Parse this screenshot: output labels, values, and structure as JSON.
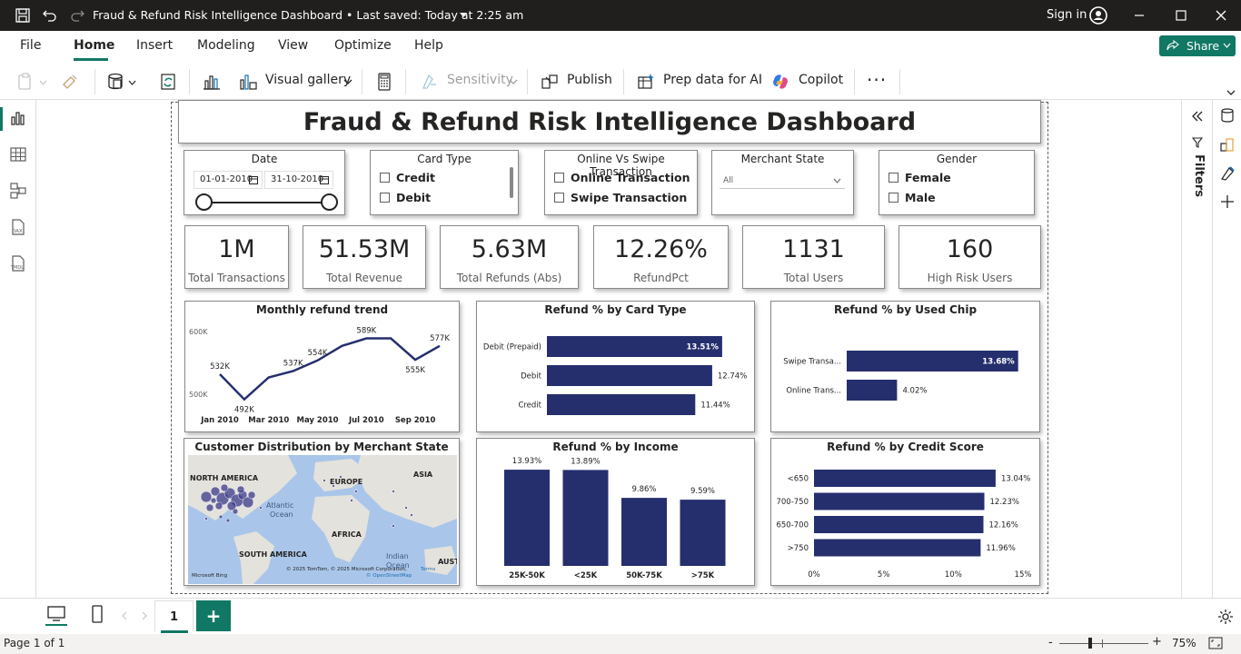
{
  "titlebar": {
    "title": "Fraud & Refund Risk Intelligence Dashboard",
    "saved": "• Last saved: Today at 2:25 am",
    "signin": "Sign in"
  },
  "menu": {
    "items": [
      "File",
      "Home",
      "Insert",
      "Modeling",
      "View",
      "Optimize",
      "Help"
    ],
    "share": "Share"
  },
  "ribbon": {
    "visual_gallery": "Visual gallery",
    "sensitivity": "Sensitivity",
    "publish": "Publish",
    "prep_data": "Prep data for AI",
    "copilot": "Copilot",
    "more": "···"
  },
  "dashboard": {
    "title": "Fraud & Refund Risk Intelligence Dashboard",
    "slicers": {
      "date": {
        "title": "Date",
        "from": "01-01-2010",
        "to": "31-10-2010"
      },
      "card_type": {
        "title": "Card Type",
        "options": [
          "Credit",
          "Debit"
        ]
      },
      "transaction": {
        "title": "Online Vs Swipe Transaction",
        "options": [
          "Online Transaction",
          "Swipe Transaction"
        ]
      },
      "merchant_state": {
        "title": "Merchant State",
        "value": "All"
      },
      "gender": {
        "title": "Gender",
        "options": [
          "Female",
          "Male"
        ]
      }
    },
    "kpis": [
      {
        "value": "1M",
        "label": "Total Transactions"
      },
      {
        "value": "51.53M",
        "label": "Total Revenue"
      },
      {
        "value": "5.63M",
        "label": "Total Refunds (Abs)"
      },
      {
        "value": "12.26%",
        "label": "RefundPct"
      },
      {
        "value": "1131",
        "label": "Total Users"
      },
      {
        "value": "160",
        "label": "High Risk Users"
      }
    ],
    "map": {
      "title": "Customer Distribution by Merchant State",
      "labels": [
        "NORTH AMERICA",
        "EUROPE",
        "ASIA",
        "Atlantic",
        "Ocean",
        "AFRICA",
        "SOUTH AMERICA",
        "Indian",
        "Ocean",
        "AUST"
      ],
      "attribution": "© 2025 TomTom, © 2025 Microsoft Corporation,",
      "terms": "Terms",
      "osm": "© OpenStreetMap",
      "bing": "Microsoft Bing"
    }
  },
  "chart_data": [
    {
      "type": "line",
      "title": "Monthly refund trend",
      "x": [
        "Jan 2010",
        "Feb 2010",
        "Mar 2010",
        "Apr 2010",
        "May 2010",
        "Jun 2010",
        "Jul 2010",
        "Aug 2010",
        "Sep 2010",
        "Oct 2010"
      ],
      "xticks": [
        "Jan 2010",
        "Mar 2010",
        "May 2010",
        "Jul 2010",
        "Sep 2010"
      ],
      "values": [
        532000,
        492000,
        527000,
        537000,
        554000,
        577000,
        589000,
        589000,
        555000,
        577000
      ],
      "data_labels": {
        "0": "532K",
        "1": "492K",
        "3": "537K",
        "4": "554K",
        "6": "589K",
        "8": "555K",
        "9": "577K"
      },
      "yticks": [
        "600K",
        "500K"
      ],
      "ylim": [
        480000,
        610000
      ],
      "color": "#252f6e"
    },
    {
      "type": "bar",
      "orientation": "horizontal",
      "title": "Refund % by Card Type",
      "categories": [
        "Debit (Prepaid)",
        "Debit",
        "Credit"
      ],
      "values": [
        13.51,
        12.74,
        11.44
      ],
      "labels": [
        "13.51%",
        "12.74%",
        "11.44%"
      ],
      "xlim": [
        0,
        14.5
      ],
      "color": "#252f6e"
    },
    {
      "type": "bar",
      "orientation": "horizontal",
      "title": "Refund % by Used Chip",
      "categories": [
        "Swipe Transa...",
        "Online Trans..."
      ],
      "values": [
        13.68,
        4.02
      ],
      "labels": [
        "13.68%",
        "4.02%"
      ],
      "xlim": [
        0,
        14.5
      ],
      "color": "#252f6e"
    },
    {
      "type": "bar",
      "title": "Refund % by Income",
      "categories": [
        "25K-50K",
        "<25K",
        "50K-75K",
        ">75K"
      ],
      "values": [
        13.93,
        13.89,
        9.86,
        9.59
      ],
      "labels": [
        "13.93%",
        "13.89%",
        "9.86%",
        "9.59%"
      ],
      "ylim": [
        0,
        15
      ],
      "color": "#252f6e"
    },
    {
      "type": "bar",
      "orientation": "horizontal",
      "title": "Refund % by Credit Score",
      "categories": [
        "<650",
        "700-750",
        "650-700",
        ">750"
      ],
      "values": [
        13.04,
        12.23,
        12.16,
        11.96
      ],
      "labels": [
        "13.04%",
        "12.23%",
        "12.16%",
        "11.96%"
      ],
      "xticks": [
        "0%",
        "5%",
        "10%",
        "15%"
      ],
      "xlim": [
        0,
        15
      ],
      "color": "#252f6e"
    }
  ],
  "pages": {
    "tab": "1",
    "add": "+"
  },
  "status": {
    "page": "Page 1 of 1",
    "zoom": "75%",
    "minus": "-",
    "plus": "+"
  }
}
